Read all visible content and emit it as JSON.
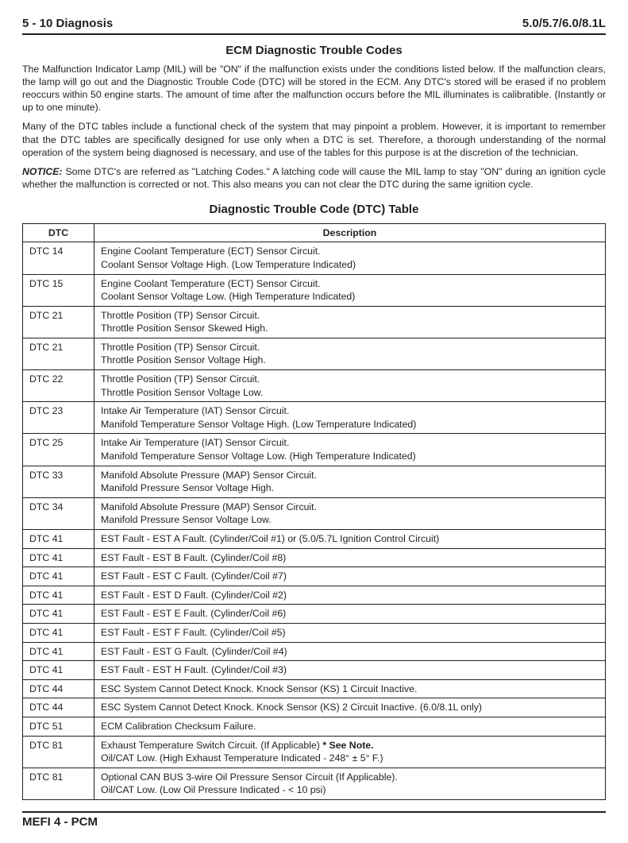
{
  "header": {
    "left": "5 - 10   Diagnosis",
    "right": "5.0/5.7/6.0/8.1L"
  },
  "section_title": "ECM Diagnostic Trouble Codes",
  "paragraphs": [
    "The Malfunction Indicator Lamp (MIL) will be \"ON\" if the malfunction exists under the conditions listed below.  If the malfunction clears, the lamp will go out and the Diagnostic Trouble Code (DTC) will be stored in the ECM.  Any DTC's stored will be erased if no problem reoccurs within 50 engine starts.  The amount of time after the malfunction occurs before the MIL illuminates is calibratible. (Instantly or up to one minute).",
    "Many of the DTC tables include a functional check of the system that may pinpoint a problem.  However, it is important to remember that the DTC tables are specifically designed for use only when a DTC is set.  Therefore, a thorough understanding of the normal operation of the system being diagnosed is necessary, and use of the tables for this purpose is at the discretion of the technician."
  ],
  "notice": {
    "label": "NOTICE:",
    "text": "  Some DTC's are referred as \"Latching Codes.\"  A latching code will cause the MIL lamp to stay \"ON\" during an ignition cycle whether the malfunction is corrected or not.  This also means you can not clear the DTC during the same ignition cycle."
  },
  "table": {
    "title": "Diagnostic Trouble Code (DTC) Table",
    "columns": [
      "DTC",
      "Description"
    ],
    "rows": [
      {
        "code": "DTC 14",
        "lines": [
          "Engine Coolant Temperature (ECT) Sensor Circuit.",
          "Coolant Sensor Voltage High.  (Low Temperature Indicated)"
        ]
      },
      {
        "code": "DTC 15",
        "lines": [
          "Engine Coolant Temperature (ECT) Sensor Circuit.",
          "Coolant Sensor Voltage Low.  (High Temperature Indicated)"
        ]
      },
      {
        "code": "DTC 21",
        "lines": [
          "Throttle Position (TP) Sensor Circuit.",
          "Throttle Position Sensor Skewed High."
        ]
      },
      {
        "code": "DTC 21",
        "lines": [
          "Throttle Position (TP) Sensor Circuit.",
          "Throttle Position Sensor Voltage High."
        ]
      },
      {
        "code": "DTC 22",
        "lines": [
          "Throttle Position (TP) Sensor Circuit.",
          "Throttle Position Sensor Voltage Low."
        ]
      },
      {
        "code": "DTC 23",
        "lines": [
          "Intake Air Temperature (IAT) Sensor Circuit.",
          "Manifold Temperature Sensor Voltage High. (Low Temperature Indicated)"
        ]
      },
      {
        "code": "DTC 25",
        "lines": [
          "Intake Air Temperature (IAT) Sensor Circuit.",
          "Manifold Temperature Sensor Voltage Low. (High Temperature Indicated)"
        ]
      },
      {
        "code": "DTC 33",
        "lines": [
          "Manifold Absolute Pressure (MAP) Sensor Circuit.",
          "Manifold Pressure Sensor Voltage High."
        ]
      },
      {
        "code": "DTC 34",
        "lines": [
          "Manifold Absolute Pressure (MAP) Sensor Circuit.",
          "Manifold Pressure Sensor Voltage Low."
        ]
      },
      {
        "code": "DTC 41",
        "lines": [
          "EST Fault - EST A Fault.  (Cylinder/Coil #1) or (5.0/5.7L Ignition Control Circuit)"
        ]
      },
      {
        "code": "DTC 41",
        "lines": [
          "EST Fault - EST B Fault.  (Cylinder/Coil #8)"
        ]
      },
      {
        "code": "DTC 41",
        "lines": [
          "EST Fault - EST C Fault.  (Cylinder/Coil #7)"
        ]
      },
      {
        "code": "DTC 41",
        "lines": [
          "EST Fault - EST D Fault.  (Cylinder/Coil #2)"
        ]
      },
      {
        "code": "DTC 41",
        "lines": [
          "EST Fault - EST E Fault.  (Cylinder/Coil #6)"
        ]
      },
      {
        "code": "DTC 41",
        "lines": [
          "EST Fault - EST F Fault.  (Cylinder/Coil #5)"
        ]
      },
      {
        "code": "DTC 41",
        "lines": [
          "EST Fault - EST G Fault.  (Cylinder/Coil #4)"
        ]
      },
      {
        "code": "DTC 41",
        "lines": [
          "EST Fault - EST H Fault.  (Cylinder/Coil #3)"
        ]
      },
      {
        "code": "DTC 44",
        "lines": [
          "ESC System Cannot Detect Knock.  Knock Sensor (KS) 1 Circuit Inactive."
        ]
      },
      {
        "code": "DTC 44",
        "lines": [
          "ESC System Cannot Detect Knock.  Knock Sensor (KS) 2 Circuit Inactive. (6.0/8.1L only)"
        ]
      },
      {
        "code": "DTC 51",
        "lines": [
          "ECM Calibration Checksum Failure."
        ]
      },
      {
        "code": "DTC 81",
        "lines": [
          "Exhaust Temperature Switch Circuit. (If Applicable)  * See Note.",
          "Oil/CAT Low.  (High Exhaust Temperature Indicated - 248° ± 5° F.)"
        ],
        "bold_note": true
      },
      {
        "code": "DTC 81",
        "lines": [
          "Optional CAN BUS 3-wire Oil Pressure Sensor Circuit (If Applicable).",
          "Oil/CAT Low.  (Low Oil Pressure Indicated - < 10 psi)"
        ]
      }
    ]
  },
  "footer": "MEFI 4 - PCM"
}
